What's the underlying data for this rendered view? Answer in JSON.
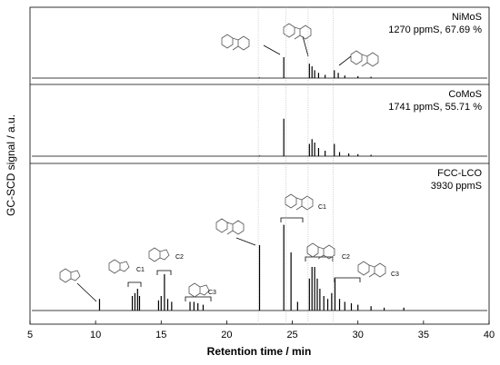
{
  "chart_data": [
    {
      "type": "stem",
      "name": "NiMoS",
      "note": "1270 ppmS, 67.69 %",
      "ylim": [
        0,
        100
      ],
      "x": [
        22.5,
        24.35,
        26.3,
        26.5,
        26.7,
        27.0,
        27.5,
        28.2,
        28.5,
        29.0,
        30.0,
        31.0
      ],
      "values": [
        1,
        32,
        22,
        18,
        12,
        8,
        5,
        12,
        8,
        4,
        3,
        2
      ]
    },
    {
      "type": "stem",
      "name": "CoMoS",
      "note": "1741 ppmS, 55.71 %",
      "ylim": [
        0,
        100
      ],
      "x": [
        22.5,
        24.35,
        26.3,
        26.5,
        26.7,
        27.0,
        27.5,
        28.2,
        28.6,
        29.3,
        30.0,
        31.0
      ],
      "values": [
        1,
        55,
        18,
        25,
        20,
        12,
        8,
        18,
        6,
        4,
        3,
        2
      ]
    },
    {
      "type": "stem",
      "name": "FCC-LCO",
      "note": "3930 ppmS",
      "ylim": [
        0,
        100
      ],
      "x": [
        10.3,
        12.8,
        13.0,
        13.2,
        13.35,
        14.8,
        15.0,
        15.25,
        15.5,
        15.8,
        17.2,
        17.5,
        17.8,
        18.2,
        22.5,
        24.35,
        24.9,
        25.4,
        26.3,
        26.5,
        26.7,
        26.9,
        27.1,
        27.4,
        27.7,
        28.0,
        28.25,
        28.6,
        29.0,
        29.5,
        30.0,
        31.0,
        32.0,
        33.5
      ],
      "values": [
        8,
        10,
        12,
        15,
        10,
        7,
        10,
        25,
        8,
        6,
        6,
        6,
        5,
        4,
        45,
        59,
        40,
        6,
        22,
        30,
        30,
        22,
        15,
        10,
        8,
        12,
        22,
        8,
        6,
        5,
        4,
        3,
        2,
        2
      ],
      "annotations": [
        "C1",
        "C2",
        "C3",
        "C1",
        "C2",
        "C3"
      ],
      "xlim": [
        5,
        40
      ],
      "xticks": [
        5,
        10,
        15,
        20,
        25,
        30,
        35,
        40
      ],
      "vlines": [
        22.4,
        24.5,
        26.2,
        28.1
      ],
      "xlabel": "Retention time / min",
      "ylabel": "GC-SCD signal / a.u."
    }
  ]
}
